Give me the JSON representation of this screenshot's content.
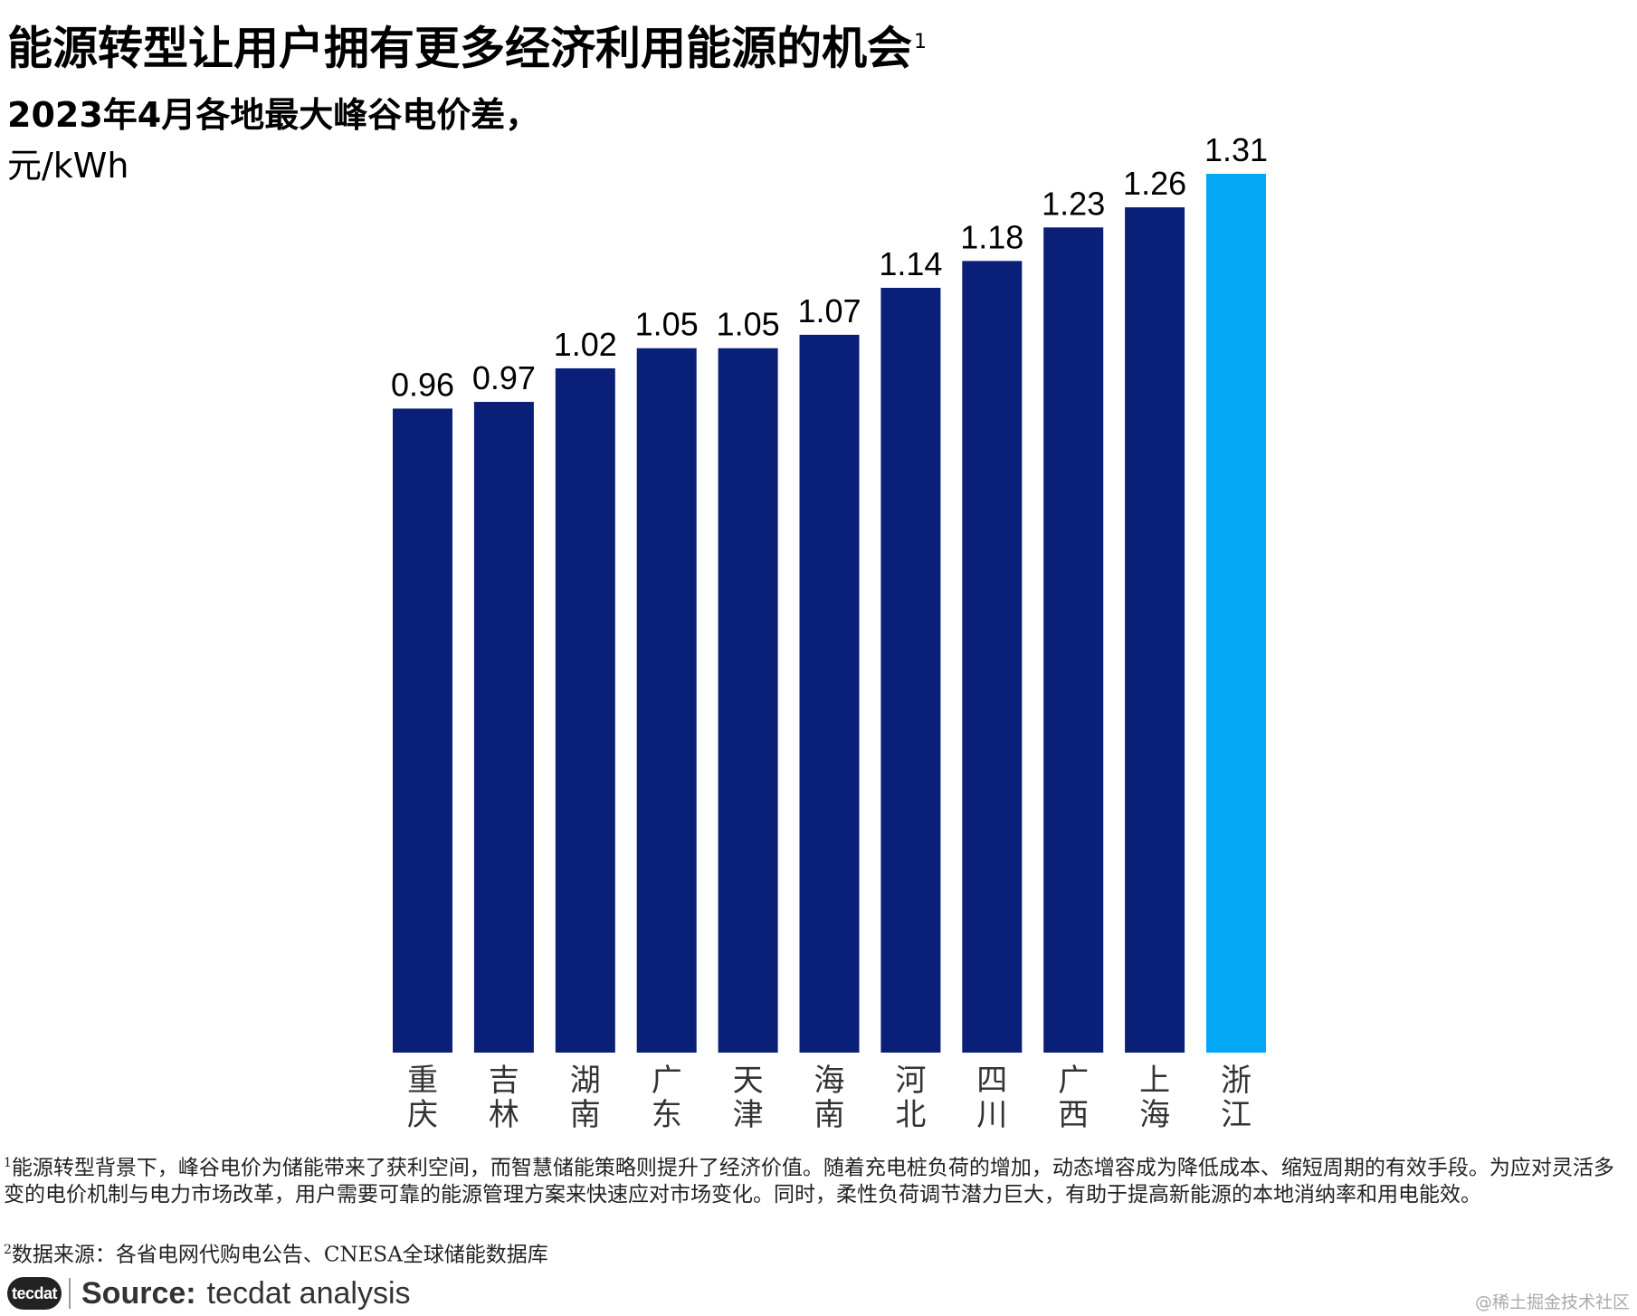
{
  "header": {
    "title": "能源转型让用户拥有更多经济利用能源的机会",
    "title_footnote_mark": "1",
    "subtitle": "2023年4月各地最大峰谷电价差，",
    "unit": "元/kWh"
  },
  "chart_data": {
    "type": "bar",
    "title": "2023年4月各地最大峰谷电价差，",
    "ylabel": "元/kWh",
    "xlabel": "",
    "categories": [
      "重庆",
      "吉林",
      "湖南",
      "广东",
      "天津",
      "海南",
      "河北",
      "四川",
      "广西",
      "上海",
      "浙江"
    ],
    "values": [
      0.96,
      0.97,
      1.02,
      1.05,
      1.05,
      1.07,
      1.14,
      1.18,
      1.23,
      1.26,
      1.31
    ],
    "value_labels": [
      "0.96",
      "0.97",
      "1.02",
      "1.05",
      "1.05",
      "1.07",
      "1.14",
      "1.18",
      "1.23",
      "1.26",
      "1.31"
    ],
    "ylim": [
      -0.0,
      1.31
    ],
    "grid": false,
    "highlight_index": 10,
    "colors": {
      "bar": "#0a1f78",
      "highlight": "#03a9f4"
    }
  },
  "footnotes": {
    "note1_mark": "1",
    "note1": "能源转型背景下，峰谷电价为储能带来了获利空间，而智慧储能策略则提升了经济价值。随着充电桩负荷的增加，动态增容成为降低成本、缩短周期的有效手段。为应对灵活多变的电价机制与电力市场改革，用户需要可靠的能源管理方案来快速应对市场变化。同时，柔性负荷调节潜力巨大，有助于提高新能源的本地消纳率和用电能效。",
    "note2_mark": "2",
    "note2": "数据来源：各省电网代购电公告、CNESA全球储能数据库"
  },
  "source": {
    "logo_text": "tecdat",
    "label": "Source:",
    "text": "tecdat analysis"
  },
  "watermark": "@稀土掘金技术社区"
}
